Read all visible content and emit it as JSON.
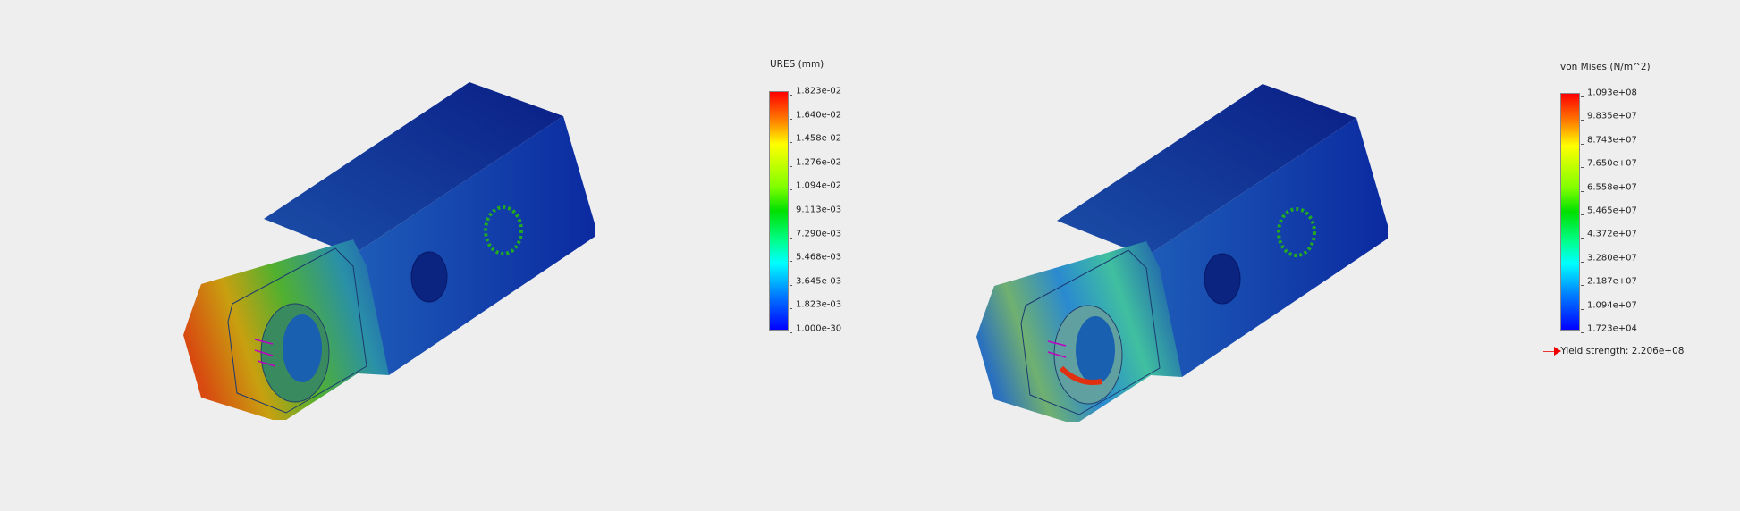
{
  "plots": [
    {
      "title": "URES (mm)",
      "labels": [
        "1.823e-02",
        "1.640e-02",
        "1.458e-02",
        "1.276e-02",
        "1.094e-02",
        "9.113e-03",
        "7.290e-03",
        "5.468e-03",
        "3.645e-03",
        "1.823e-03",
        "1.000e-30"
      ]
    },
    {
      "title": "von Mises (N/m^2)",
      "labels": [
        "1.093e+08",
        "9.835e+07",
        "8.743e+07",
        "7.650e+07",
        "6.558e+07",
        "5.465e+07",
        "4.372e+07",
        "3.280e+07",
        "2.187e+07",
        "1.094e+07",
        "1.723e+04"
      ],
      "yield_label": "Yield strength: 2.206e+08"
    }
  ],
  "colors": {
    "background": "#eeeeee",
    "low": "#0000ff",
    "high": "#ff0000",
    "fixture": "#22aa22",
    "load": "#c000c0"
  }
}
